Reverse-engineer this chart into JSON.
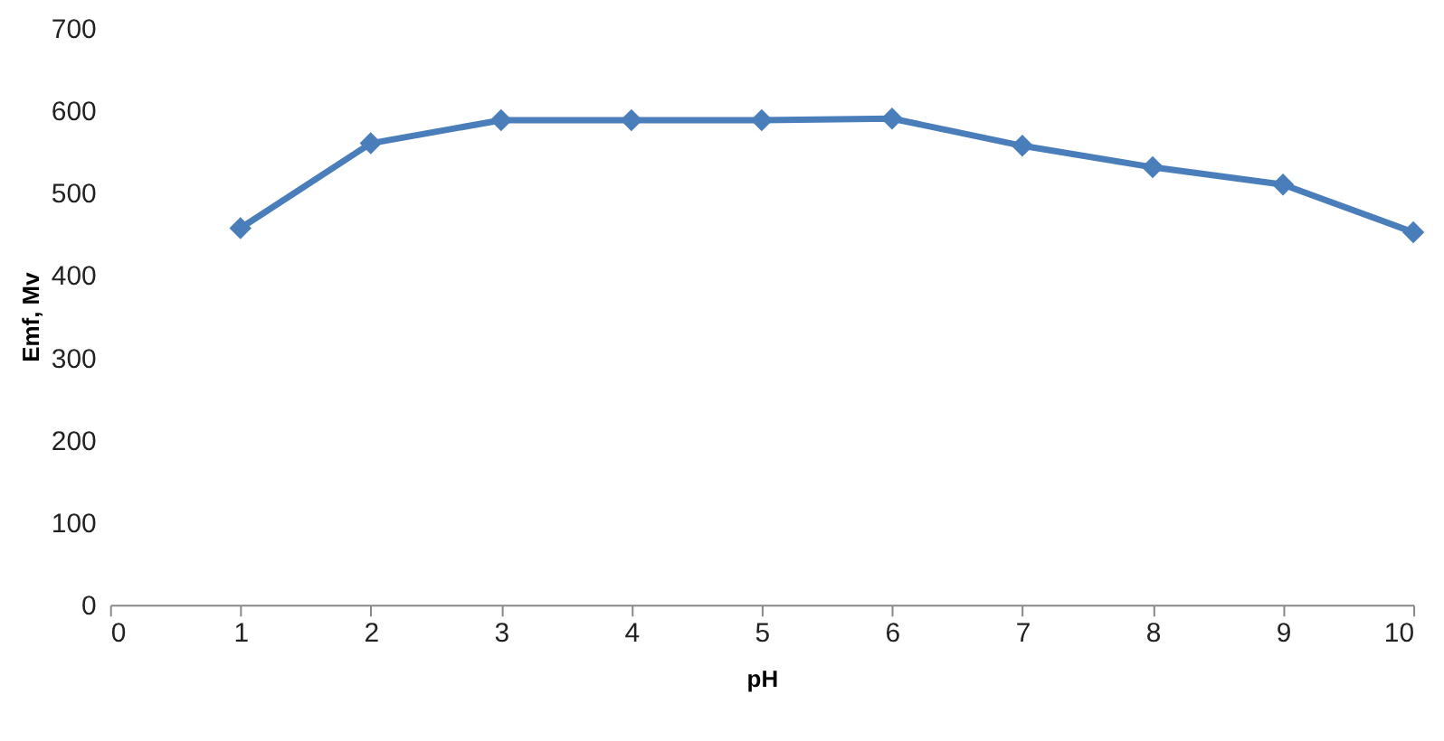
{
  "chart_data": {
    "type": "line",
    "xlabel": "pH",
    "ylabel": "Emf, Mv",
    "x": [
      1,
      2,
      3,
      4,
      5,
      6,
      7,
      8,
      9,
      10
    ],
    "series": [
      {
        "color": "#4a7ebb",
        "values": [
          457,
          560,
          588,
          588,
          588,
          590,
          557,
          531,
          510,
          452
        ]
      }
    ],
    "xlim": [
      0,
      10
    ],
    "xticks": [
      0,
      1,
      2,
      3,
      4,
      5,
      6,
      7,
      8,
      9,
      10
    ],
    "ylim": [
      0,
      700
    ],
    "yticks": [
      0,
      100,
      200,
      300,
      400,
      500,
      600,
      700
    ],
    "grid": false,
    "marker": "diamond",
    "line_style": "solid"
  }
}
